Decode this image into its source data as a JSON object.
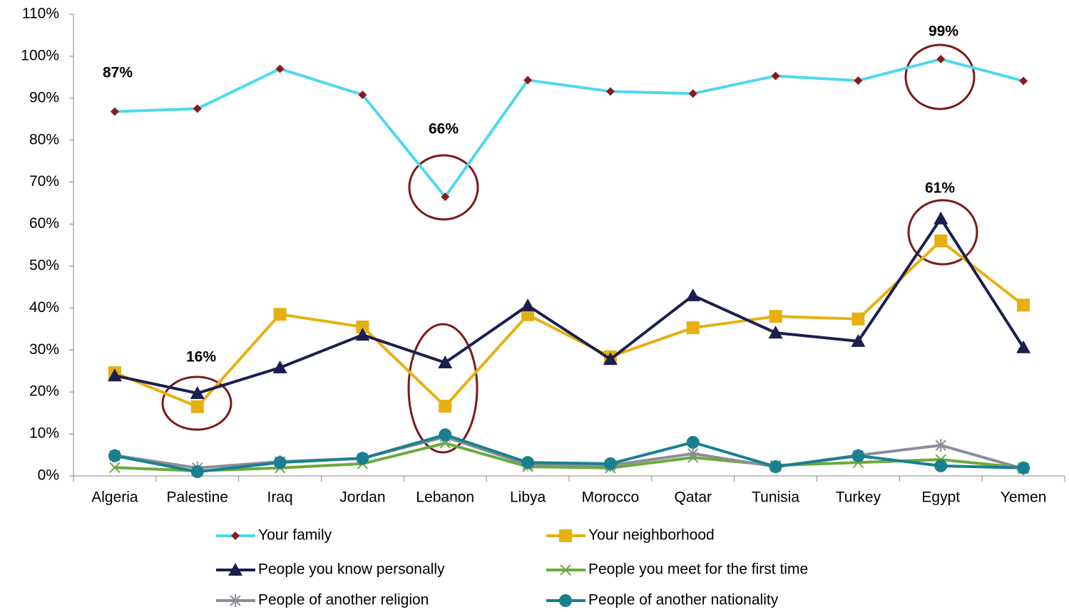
{
  "chart_data": {
    "type": "line",
    "categories": [
      "Algeria",
      "Palestine",
      "Iraq",
      "Jordan",
      "Lebanon",
      "Libya",
      "Morocco",
      "Qatar",
      "Tunisia",
      "Turkey",
      "Egypt",
      "Yemen"
    ],
    "series": [
      {
        "name": "Your family",
        "color": "#4fd8ee",
        "marker": "diamond",
        "marker_color": "#8b1a1a",
        "values": [
          86.8,
          87.5,
          97,
          90.8,
          66.5,
          94.3,
          91.6,
          91.1,
          95.3,
          94.2,
          99.3,
          94.1
        ]
      },
      {
        "name": "Your neighborhood",
        "color": "#e6b012",
        "marker": "square",
        "marker_color": "#e6b012",
        "values": [
          24.6,
          16.5,
          38.5,
          35.5,
          16.6,
          38.4,
          28.4,
          35.3,
          38.0,
          37.4,
          56.0,
          40.7
        ]
      },
      {
        "name": "People you know personally",
        "color": "#1b1f4f",
        "marker": "triangle",
        "marker_color": "#1b1f4f",
        "values": [
          23.9,
          19.7,
          25.8,
          33.6,
          27.0,
          40.6,
          27.8,
          43.0,
          34.1,
          32.1,
          61.3,
          30.6
        ]
      },
      {
        "name": "People you meet for the first time",
        "color": "#6aaa3a",
        "marker": "x",
        "marker_color": "#6aaa3a",
        "values": [
          2.0,
          1.2,
          1.9,
          2.9,
          7.8,
          2.2,
          1.9,
          4.4,
          2.5,
          3.2,
          3.9,
          1.9
        ]
      },
      {
        "name": "People of another religion",
        "color": "#8a8f96",
        "marker": "star",
        "marker_color": "#8a8f96",
        "values": [
          4.9,
          1.9,
          3.4,
          4.2,
          9.3,
          2.7,
          2.5,
          5.3,
          2.2,
          4.9,
          7.3,
          1.7
        ]
      },
      {
        "name": "People of another nationality",
        "color": "#1a8090",
        "marker": "circle",
        "marker_color": "#1a8090",
        "values": [
          4.8,
          1.0,
          3.2,
          4.2,
          9.8,
          3.2,
          2.9,
          8.0,
          2.2,
          4.8,
          2.4,
          1.9
        ]
      }
    ],
    "ylim": [
      0,
      110
    ],
    "yticks": [
      {
        "value": 0,
        "label": "0%"
      },
      {
        "value": 10,
        "label": "10%"
      },
      {
        "value": 20,
        "label": "20%"
      },
      {
        "value": 30,
        "label": "30%"
      },
      {
        "value": 40,
        "label": "40%"
      },
      {
        "value": 50,
        "label": "50%"
      },
      {
        "value": 60,
        "label": "60%"
      },
      {
        "value": 70,
        "label": "70%"
      },
      {
        "value": 80,
        "label": "80%"
      },
      {
        "value": 90,
        "label": "90%"
      },
      {
        "value": 100,
        "label": "100%"
      },
      {
        "value": 110,
        "label": "110%"
      }
    ],
    "grid": false,
    "legend": "bottom",
    "annotations": [
      "87%",
      "16%",
      "66%",
      "61%",
      "99%"
    ]
  }
}
